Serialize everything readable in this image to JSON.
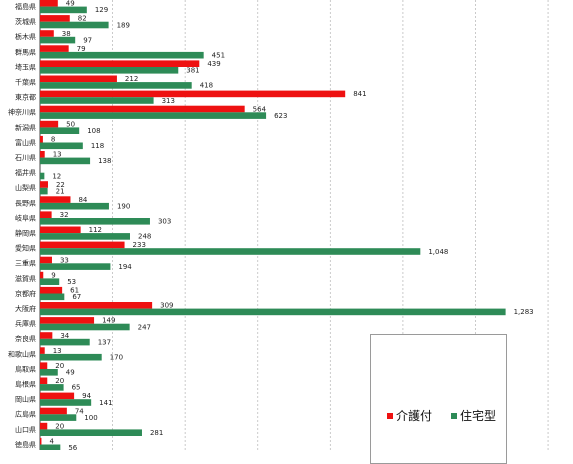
{
  "chart_data": {
    "type": "bar",
    "orientation": "horizontal",
    "title": "",
    "xlabel": "",
    "ylabel": "",
    "xlim": [
      0,
      1400
    ],
    "grid": true,
    "legend_position": "bottom-right",
    "categories": [
      "福島県",
      "茨城県",
      "栃木県",
      "群馬県",
      "埼玉県",
      "千葉県",
      "東京都",
      "神奈川県",
      "新潟県",
      "富山県",
      "石川県",
      "福井県",
      "山梨県",
      "長野県",
      "岐阜県",
      "静岡県",
      "愛知県",
      "三重県",
      "滋賀県",
      "京都府",
      "大阪府",
      "兵庫県",
      "奈良県",
      "和歌山県",
      "鳥取県",
      "島根県",
      "岡山県",
      "広島県",
      "山口県",
      "徳島県"
    ],
    "value_labels": [
      [
        "49",
        "129"
      ],
      [
        "82",
        "189"
      ],
      [
        "38",
        "97"
      ],
      [
        "79",
        "451"
      ],
      [
        "439",
        "381"
      ],
      [
        "212",
        "418"
      ],
      [
        "841",
        "313"
      ],
      [
        "564",
        "623"
      ],
      [
        "50",
        "108"
      ],
      [
        "8",
        "118"
      ],
      [
        "13",
        "138"
      ],
      [
        "",
        "12"
      ],
      [
        "22",
        "21"
      ],
      [
        "84",
        "190"
      ],
      [
        "32",
        "303"
      ],
      [
        "112",
        "248"
      ],
      [
        "233",
        "1,048"
      ],
      [
        "33",
        "194"
      ],
      [
        "9",
        "53"
      ],
      [
        "61",
        "67"
      ],
      [
        "309",
        "1,283"
      ],
      [
        "149",
        "247"
      ],
      [
        "34",
        "137"
      ],
      [
        "13",
        "170"
      ],
      [
        "20",
        "49"
      ],
      [
        "20",
        "65"
      ],
      [
        "94",
        "141"
      ],
      [
        "74",
        "100"
      ],
      [
        "20",
        "281"
      ],
      [
        "4",
        "56"
      ]
    ],
    "series": [
      {
        "name": "介護付",
        "color": "#ee1111",
        "values": [
          49,
          82,
          38,
          79,
          439,
          212,
          841,
          564,
          50,
          8,
          13,
          null,
          22,
          84,
          32,
          112,
          233,
          33,
          9,
          61,
          309,
          149,
          34,
          13,
          20,
          20,
          94,
          74,
          20,
          4
        ]
      },
      {
        "name": "住宅型",
        "color": "#2e8b57",
        "values": [
          129,
          189,
          97,
          451,
          381,
          418,
          313,
          623,
          108,
          118,
          138,
          12,
          21,
          190,
          303,
          248,
          1048,
          194,
          53,
          67,
          1283,
          247,
          137,
          170,
          49,
          65,
          141,
          100,
          281,
          56
        ]
      }
    ]
  }
}
